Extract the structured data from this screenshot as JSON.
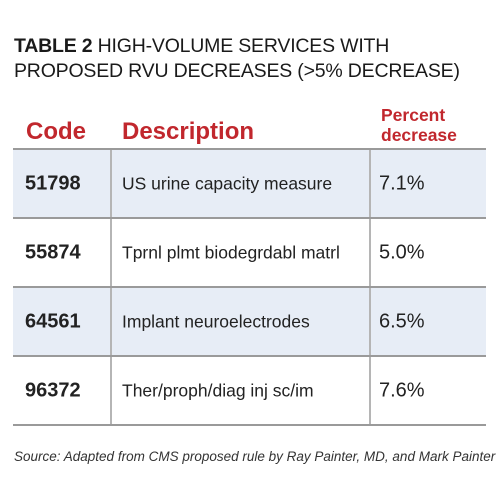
{
  "title": {
    "label": "TABLE 2",
    "text": "HIGH-VOLUME SERVICES WITH PROPOSED RVU DECREASES (>5% DECREASE)"
  },
  "table": {
    "headers": {
      "code": "Code",
      "description": "Description",
      "percent_line1": "Percent",
      "percent_line2": "decrease"
    },
    "rows": [
      {
        "code": "51798",
        "description": "US urine capacity measure",
        "percent": "7.1%"
      },
      {
        "code": "55874",
        "description": "Tprnl plmt biodegrdabl matrl",
        "percent": "5.0%"
      },
      {
        "code": "64561",
        "description": "Implant neuroelectrodes",
        "percent": "6.5%"
      },
      {
        "code": "96372",
        "description": "Ther/proph/diag inj sc/im",
        "percent": "7.6%"
      }
    ]
  },
  "source": "Source: Adapted from CMS proposed rule by Ray Painter, MD, and Mark Painter",
  "colors": {
    "header_text": "#c1272d",
    "row_shade": "#e7edf6",
    "rule": "#9a9a9a"
  }
}
